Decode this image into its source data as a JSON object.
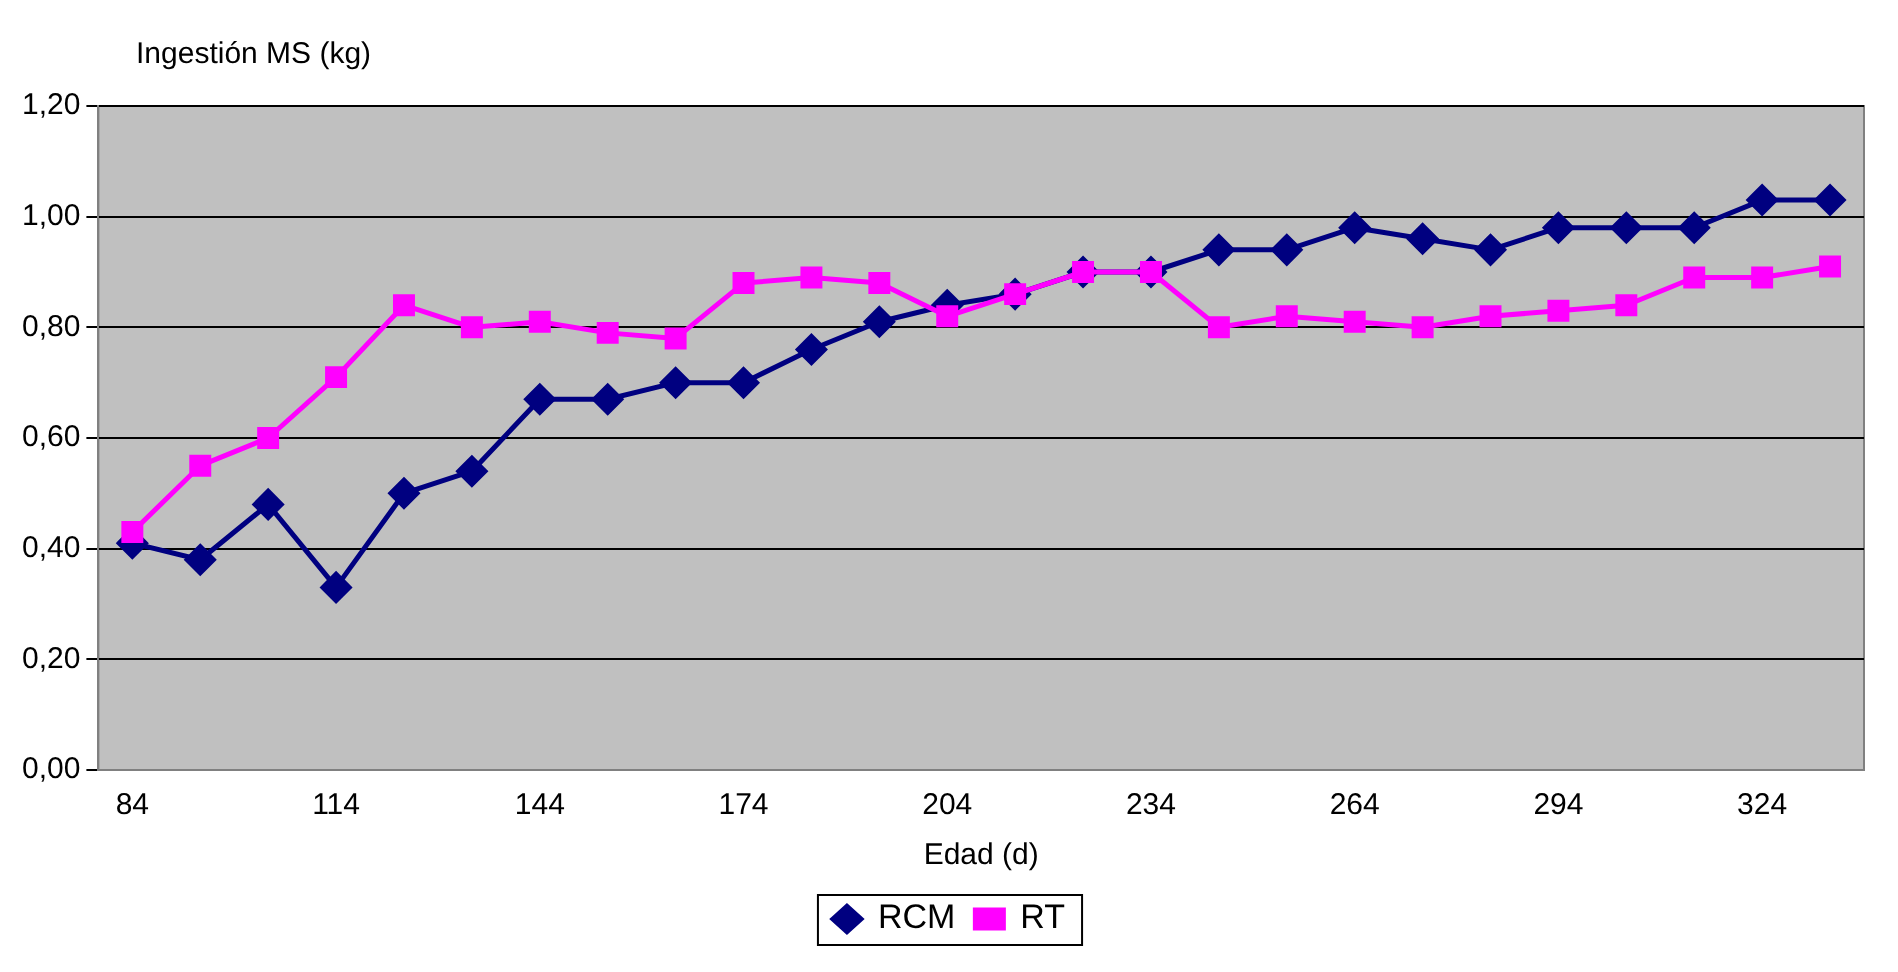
{
  "chart_data": {
    "type": "line",
    "xlabel": "Edad (d)",
    "ylabel": "Ingestión MS (kg)",
    "x": [
      84,
      94,
      104,
      114,
      124,
      134,
      144,
      154,
      164,
      174,
      184,
      194,
      204,
      214,
      224,
      234,
      244,
      254,
      264,
      274,
      284,
      294,
      304,
      314,
      324,
      334
    ],
    "xlim": [
      79,
      339
    ],
    "xticks": [
      84,
      114,
      144,
      174,
      204,
      234,
      264,
      294,
      324
    ],
    "ylim": [
      0,
      1.2
    ],
    "yticks": [
      {
        "value": 0,
        "label": "0,00"
      },
      {
        "value": 0.2,
        "label": "0,20"
      },
      {
        "value": 0.4,
        "label": "0,40"
      },
      {
        "value": 0.6,
        "label": "0,60"
      },
      {
        "value": 0.8,
        "label": "0,80"
      },
      {
        "value": 1,
        "label": "1,00"
      },
      {
        "value": 1.2,
        "label": "1,20"
      }
    ],
    "grid": "y",
    "legend": "bottom",
    "series": [
      {
        "name": "RCM",
        "color": "#000080",
        "marker": "diamond",
        "values": [
          0.41,
          0.38,
          0.48,
          0.33,
          0.5,
          0.54,
          0.67,
          0.67,
          0.7,
          0.7,
          0.76,
          0.81,
          0.84,
          0.86,
          0.9,
          0.9,
          0.94,
          0.94,
          0.98,
          0.96,
          0.94,
          0.98,
          0.98,
          0.98,
          1.03,
          1.03
        ]
      },
      {
        "name": "RT",
        "color": "#ff00ff",
        "marker": "square",
        "values": [
          0.43,
          0.55,
          0.6,
          0.71,
          0.84,
          0.8,
          0.81,
          0.79,
          0.78,
          0.88,
          0.89,
          0.88,
          0.82,
          0.86,
          0.9,
          0.9,
          0.8,
          0.82,
          0.81,
          0.8,
          0.82,
          0.83,
          0.84,
          0.89,
          0.89,
          0.91
        ]
      }
    ]
  }
}
